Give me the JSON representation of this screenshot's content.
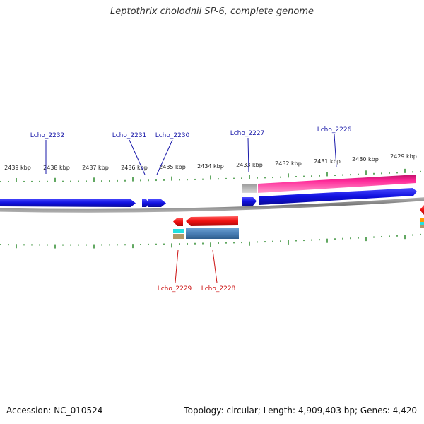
{
  "title": "Leptothrix cholodnii SP-6, complete genome",
  "footer": {
    "accession": "Accession: NC_010524",
    "summary": "Topology: circular; Length: 4,909,403 bp; Genes: 4,420"
  },
  "colors": {
    "backbone": "#888888",
    "ticks": "#2e8b2e",
    "forward_label": "#1a1aaa",
    "reverse_label": "#cc1111",
    "forward_gene": "#1010e0",
    "reverse_gene": "#ee1111",
    "rna_pink": "#ff2a99",
    "grey_feature": "#b8b8b8",
    "steelblue_feature": "#4a7fb5",
    "cyan_feature": "#22e0e0",
    "tan_feature": "#b0986a"
  },
  "tick_labels": [
    "2439 kbp",
    "2438 kbp",
    "2437 kbp",
    "2436 kbp",
    "2435 kbp",
    "2434 kbp",
    "2433 kbp",
    "2432 kbp",
    "2431 kbp",
    "2430 kbp",
    "2429 kbp"
  ],
  "forward_genes": [
    "Lcho_2232",
    "Lcho_2231",
    "Lcho_2230",
    "Lcho_2227",
    "Lcho_2226"
  ],
  "reverse_genes": [
    "Lcho_2229",
    "Lcho_2228"
  ]
}
